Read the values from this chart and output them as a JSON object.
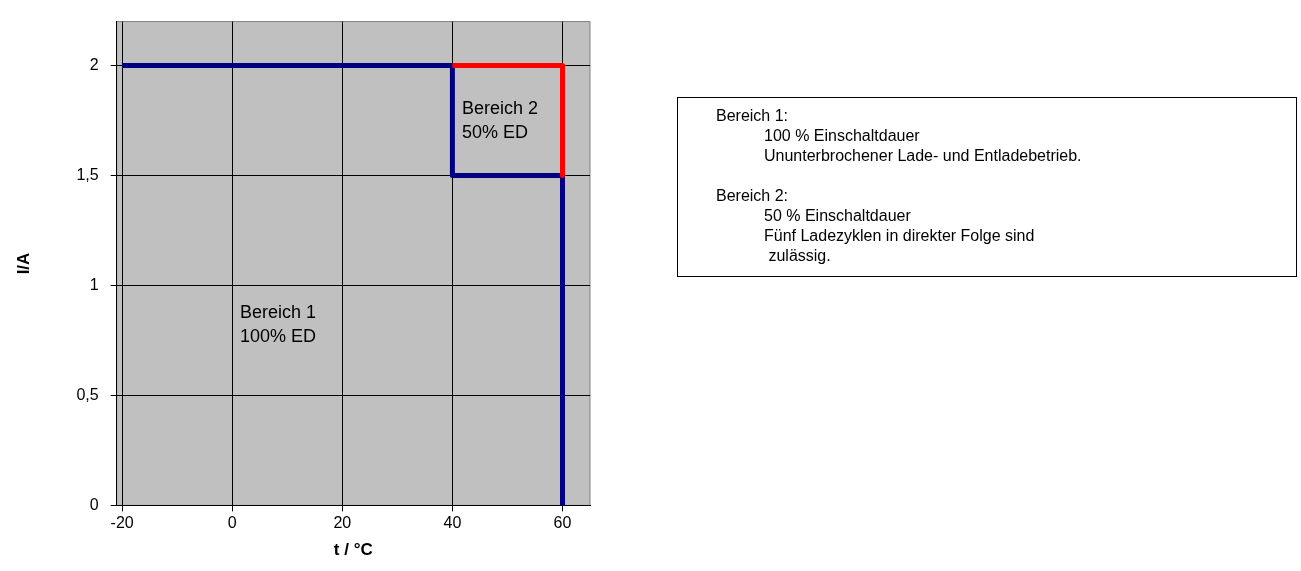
{
  "chart_data": {
    "type": "line",
    "xlabel": "t / °C",
    "ylabel": "I/A",
    "xlim": [
      -21,
      65
    ],
    "xticks": [
      -20,
      0,
      20,
      40,
      60
    ],
    "ylim": [
      0,
      2.2
    ],
    "yticks": [
      0,
      {
        "value": 0.5,
        "label": "0,5"
      },
      1,
      {
        "value": 1.5,
        "label": "1,5"
      },
      2
    ],
    "series": [
      {
        "color": "#ff0000",
        "x": [
          40,
          60,
          60
        ],
        "values": [
          2,
          2,
          1.5
        ]
      },
      {
        "color": "#000080",
        "x": [
          -20,
          40,
          40,
          60,
          60
        ],
        "values": [
          2,
          2,
          1.5,
          1.5,
          0
        ]
      }
    ],
    "grid": true,
    "marker": "none",
    "line_style": "solid",
    "annotations": [
      "Bereich 2\n50% ED",
      "Bereich 1\n100% ED",
      "Bereich 1:\n\t100 % Einschaltdauer\n\tUnunterbrochener Lade- und Entladebetrieb.\n\nBereich 2:\n\t50 % Einschaltdauer\n\tFünf Ladezyklen in direkter Folge sind\n\t zulässig."
    ]
  }
}
